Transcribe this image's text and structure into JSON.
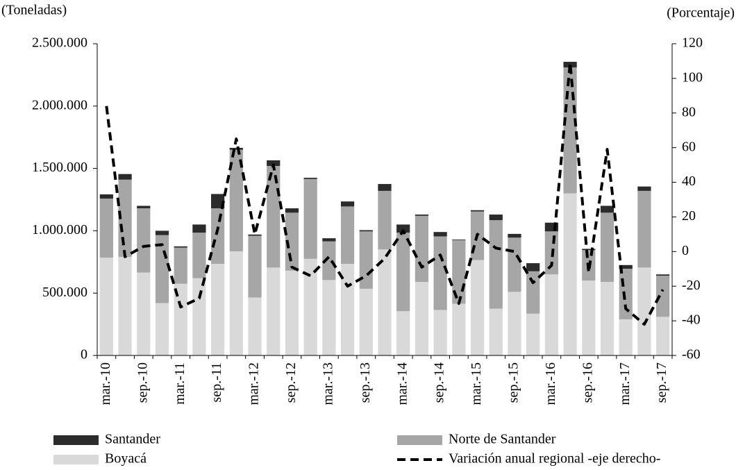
{
  "chart_data": {
    "type": "bar",
    "y_axis_label": "(Toneladas)",
    "y2_axis_label": "(Porcentaje)",
    "categories": [
      "mar.-10",
      null,
      "sep.-10",
      null,
      "mar.-11",
      null,
      "sep.-11",
      null,
      "mar.-12",
      null,
      "sep.-12",
      null,
      "mar.-13",
      null,
      "sep.-13",
      null,
      "mar.-14",
      null,
      "sep.-14",
      null,
      "mar.-15",
      null,
      "sep.-15",
      null,
      "mar.-16",
      null,
      "sep.-16",
      null,
      "mar.-17",
      null,
      "sep.-17"
    ],
    "ylim": [
      0,
      2500000
    ],
    "yticks": [
      0,
      {
        "value": 500000,
        "label": "500.000"
      },
      {
        "value": 1000000,
        "label": "1.000.000"
      },
      {
        "value": 1500000,
        "label": "1.500.000"
      },
      {
        "value": 2000000,
        "label": "2.000.000"
      },
      {
        "value": 2500000,
        "label": "2.500.000"
      }
    ],
    "y2lim": [
      -60,
      120
    ],
    "y2ticks": [
      -60,
      -40,
      -20,
      0,
      20,
      40,
      60,
      80,
      100,
      120
    ],
    "stacked": true,
    "series": [
      {
        "name": "Santander",
        "color": "#2b2b2b",
        "type": "bar",
        "values": [
          34000,
          45000,
          20000,
          35000,
          10000,
          65000,
          115000,
          15000,
          10000,
          45000,
          35000,
          10000,
          25000,
          40000,
          10000,
          55000,
          65000,
          10000,
          35000,
          5000,
          10000,
          45000,
          30000,
          65000,
          70000,
          45000,
          10000,
          55000,
          30000,
          35000,
          10000
        ]
      },
      {
        "name": "Norte de Santander",
        "color": "#a6a6a6",
        "type": "bar",
        "values": [
          473000,
          620000,
          515000,
          545000,
          290000,
          365000,
          445000,
          815000,
          495000,
          815000,
          465000,
          640000,
          310000,
          460000,
          460000,
          470000,
          630000,
          530000,
          590000,
          510000,
          390000,
          710000,
          435000,
          340000,
          345000,
          1010000,
          245000,
          555000,
          405000,
          615000,
          330000
        ]
      },
      {
        "name": "Boyacá",
        "color": "#d9d9d9",
        "type": "bar",
        "values": [
          785000,
          790000,
          665000,
          420000,
          575000,
          620000,
          735000,
          835000,
          465000,
          705000,
          680000,
          775000,
          605000,
          735000,
          535000,
          850000,
          355000,
          590000,
          365000,
          415000,
          765000,
          375000,
          510000,
          335000,
          650000,
          1300000,
          600000,
          590000,
          290000,
          705000,
          310000
        ]
      },
      {
        "name": "Variación anual regional -eje derecho-",
        "color": "#000000",
        "type": "line",
        "axis": "y2",
        "dashed": true,
        "values": [
          84,
          -3,
          3,
          4,
          -32,
          -27,
          13,
          65,
          10,
          50,
          -9,
          -14,
          -3,
          -20,
          -14,
          -4,
          12,
          -9,
          -2,
          -30,
          10,
          2,
          0,
          -18,
          -8,
          109,
          -12,
          59,
          -33,
          -42,
          -22
        ]
      }
    ]
  }
}
